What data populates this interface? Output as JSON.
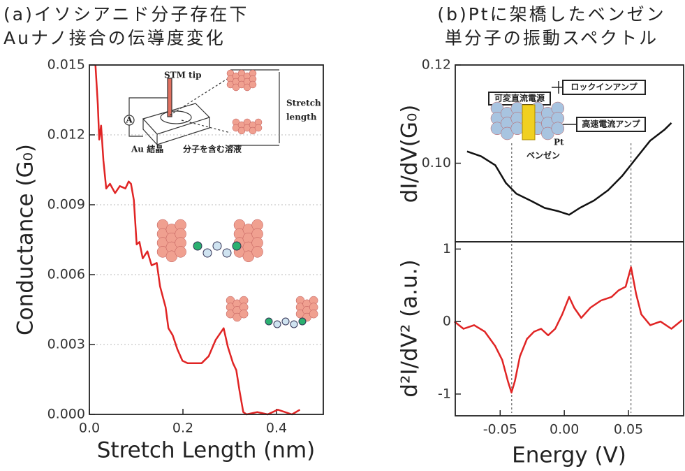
{
  "chart_data": [
    {
      "type": "line",
      "title": [
        "(a)イソシアニド分子存在下",
        "Auナノ接合の伝導度変化"
      ],
      "xlabel": "Stretch Length (nm)",
      "ylabel": "Conductance (G₀)",
      "xlim": [
        0,
        0.5
      ],
      "ylim": [
        0,
        0.015
      ],
      "xticks": [
        {
          "value": 0,
          "label": "0.0"
        },
        0.2,
        0.4
      ],
      "yticks": [
        {
          "value": 0,
          "label": "0.000"
        },
        0.003,
        {
          "value": 0.006,
          "label": "0.006"
        },
        0.009,
        0.012,
        0.015
      ],
      "grid": true,
      "color": "#e02424",
      "annotations": [
        "STM tip",
        "Stretch",
        "length",
        "A",
        "Au 結晶",
        "分子を含む溶液"
      ],
      "x": [
        0.013,
        0.018,
        0.021,
        0.025,
        0.03,
        0.036,
        0.044,
        0.055,
        0.065,
        0.077,
        0.084,
        0.089,
        0.095,
        0.101,
        0.107,
        0.114,
        0.124,
        0.133,
        0.144,
        0.151,
        0.159,
        0.163,
        0.169,
        0.178,
        0.188,
        0.199,
        0.21,
        0.225,
        0.24,
        0.255,
        0.27,
        0.287,
        0.296,
        0.307,
        0.314,
        0.321,
        0.329,
        0.336,
        0.359,
        0.381,
        0.403,
        0.433,
        0.45
      ],
      "values": [
        0.015,
        0.0133,
        0.0118,
        0.0124,
        0.0109,
        0.0097,
        0.0099,
        0.0095,
        0.0098,
        0.0097,
        0.01,
        0.0099,
        0.0092,
        0.0073,
        0.0074,
        0.0067,
        0.007,
        0.0064,
        0.0065,
        0.0055,
        0.0049,
        0.0046,
        0.0037,
        0.0034,
        0.0028,
        0.0023,
        0.0022,
        0.0022,
        0.0022,
        0.0025,
        0.0032,
        0.0037,
        0.0029,
        0.0022,
        0.0019,
        0.001,
        0.0001,
        0,
        0.0001,
        0,
        0.0002,
        0,
        0.0002
      ]
    },
    {
      "type": "line",
      "title": [
        "(b)Ptに架橋したベンゼン",
        "単分子の振動スペクトル"
      ],
      "ylabel": "dI/dV(G₀)",
      "xlim": [
        -0.085,
        0.093
      ],
      "ylim": [
        0.084,
        0.12
      ],
      "yticks": [
        {
          "value": 0.1,
          "label": "0.10"
        },
        0.12
      ],
      "color": "#111111",
      "annotations": [
        "可変直流電源",
        "ロックインアンプ",
        "高速電流アンプ",
        "ベンゼン",
        "Pt"
      ],
      "x": [
        -0.0758,
        -0.0648,
        -0.0538,
        -0.0456,
        -0.0374,
        -0.0264,
        -0.0154,
        -0.0044,
        0.0038,
        0.0121,
        0.0231,
        0.0341,
        0.0451,
        0.056,
        0.067,
        0.078,
        0.0835
      ],
      "values": [
        0.1024,
        0.1014,
        0.0996,
        0.096,
        0.0938,
        0.0924,
        0.0909,
        0.0902,
        0.0895,
        0.0909,
        0.0924,
        0.0945,
        0.0974,
        0.101,
        0.1046,
        0.1068,
        0.1082
      ]
    },
    {
      "type": "line",
      "xlabel": "Energy (V)",
      "ylabel": "d²I/dV² (a.u.)",
      "xlim": [
        -0.085,
        0.093
      ],
      "ylim": [
        -1.3,
        1.1
      ],
      "xticks": [
        -0.05,
        {
          "value": 0,
          "label": "0.00"
        },
        0.05
      ],
      "yticks": [
        -1,
        0,
        1
      ],
      "vlines": [
        -0.041,
        0.052
      ],
      "color": "#e02424",
      "x": [
        -0.0857,
        -0.0786,
        -0.0703,
        -0.062,
        -0.0538,
        -0.0484,
        -0.044,
        -0.0412,
        -0.0385,
        -0.0346,
        -0.0291,
        -0.0236,
        -0.0181,
        -0.0126,
        -0.0071,
        -0.0016,
        0.0038,
        0.0077,
        0.0132,
        0.0203,
        0.0286,
        0.0368,
        0.0423,
        0.0478,
        0.052,
        0.056,
        0.06,
        0.067,
        0.075,
        0.0835,
        0.0918
      ],
      "values": [
        0,
        -0.1,
        -0.05,
        -0.14,
        -0.34,
        -0.53,
        -0.82,
        -0.98,
        -0.82,
        -0.48,
        -0.24,
        -0.14,
        -0.1,
        -0.19,
        -0.1,
        0.1,
        0.34,
        0.19,
        0.05,
        0.19,
        0.29,
        0.34,
        0.43,
        0.48,
        0.75,
        0.38,
        0.1,
        -0.05,
        0,
        -0.1,
        0.02
      ]
    }
  ]
}
